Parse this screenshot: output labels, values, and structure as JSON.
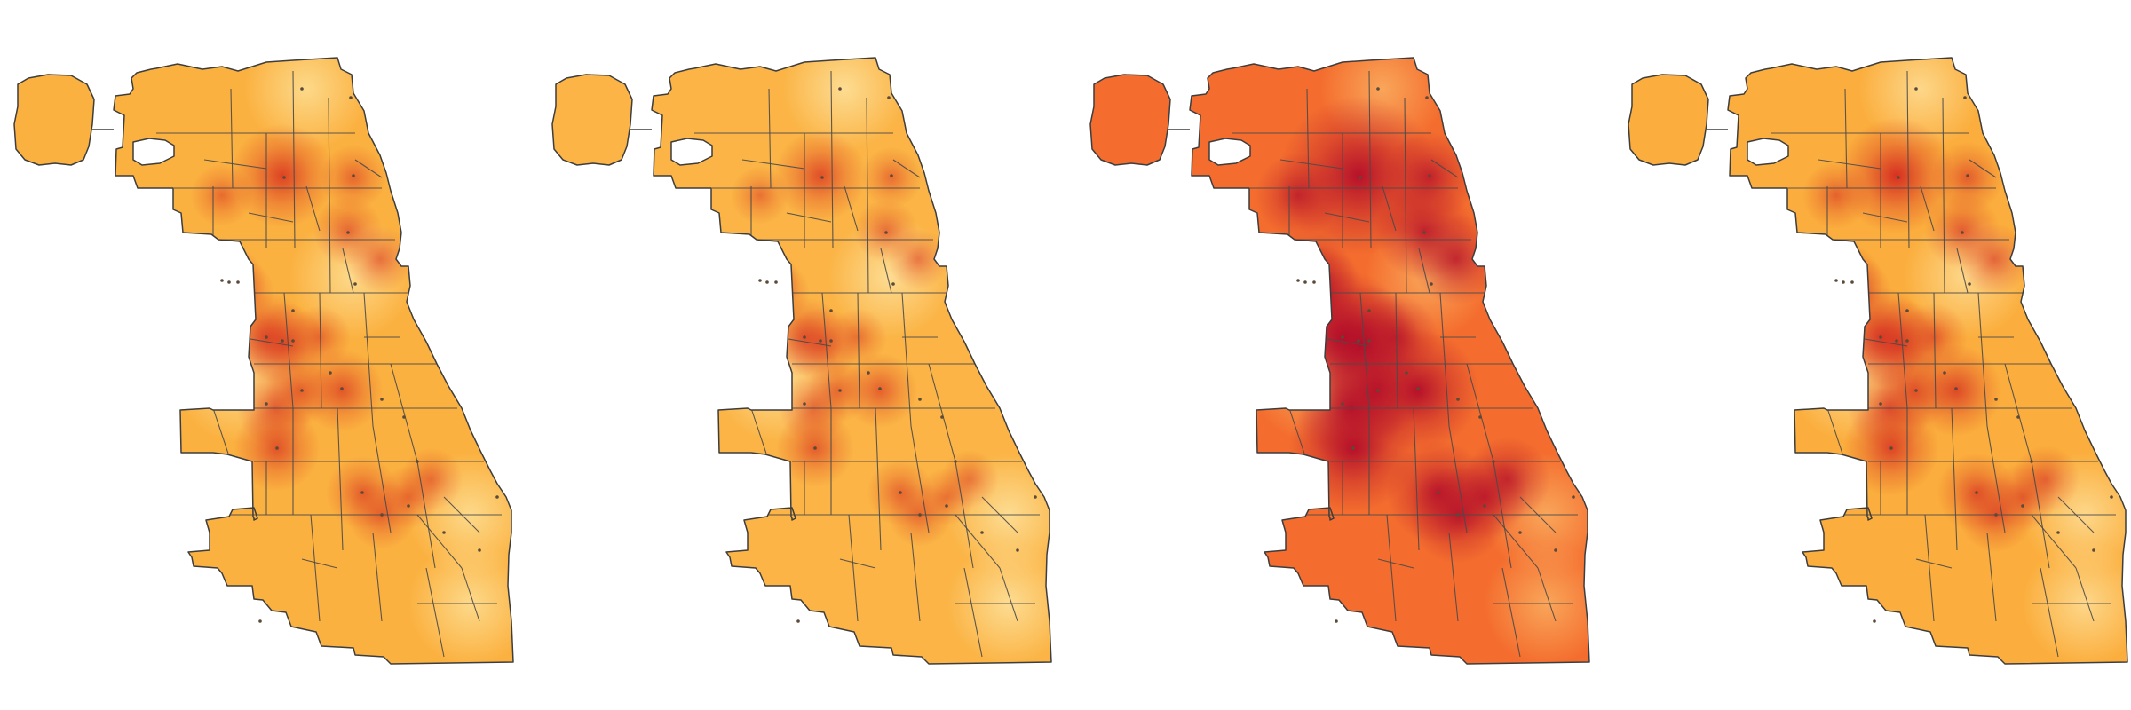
{
  "figure": {
    "panel_count": 4,
    "panels": [
      {
        "id": "panel-1",
        "base_color": "#fbb140",
        "light_color": "#fdd98a",
        "hotspot_color": "#d7301f",
        "intensity": 0.55
      },
      {
        "id": "panel-2",
        "base_color": "#fbb445",
        "light_color": "#fddc92",
        "hotspot_color": "#d7301f",
        "intensity": 0.45
      },
      {
        "id": "panel-3",
        "base_color": "#f46d2e",
        "light_color": "#f9a65a",
        "hotspot_color": "#b30d2a",
        "intensity": 1.0
      },
      {
        "id": "panel-4",
        "base_color": "#fbae3d",
        "light_color": "#fdd78a",
        "hotspot_color": "#d42a20",
        "intensity": 0.65
      }
    ],
    "colors": {
      "outline": "#3d3d3d",
      "background": "#ffffff"
    }
  }
}
